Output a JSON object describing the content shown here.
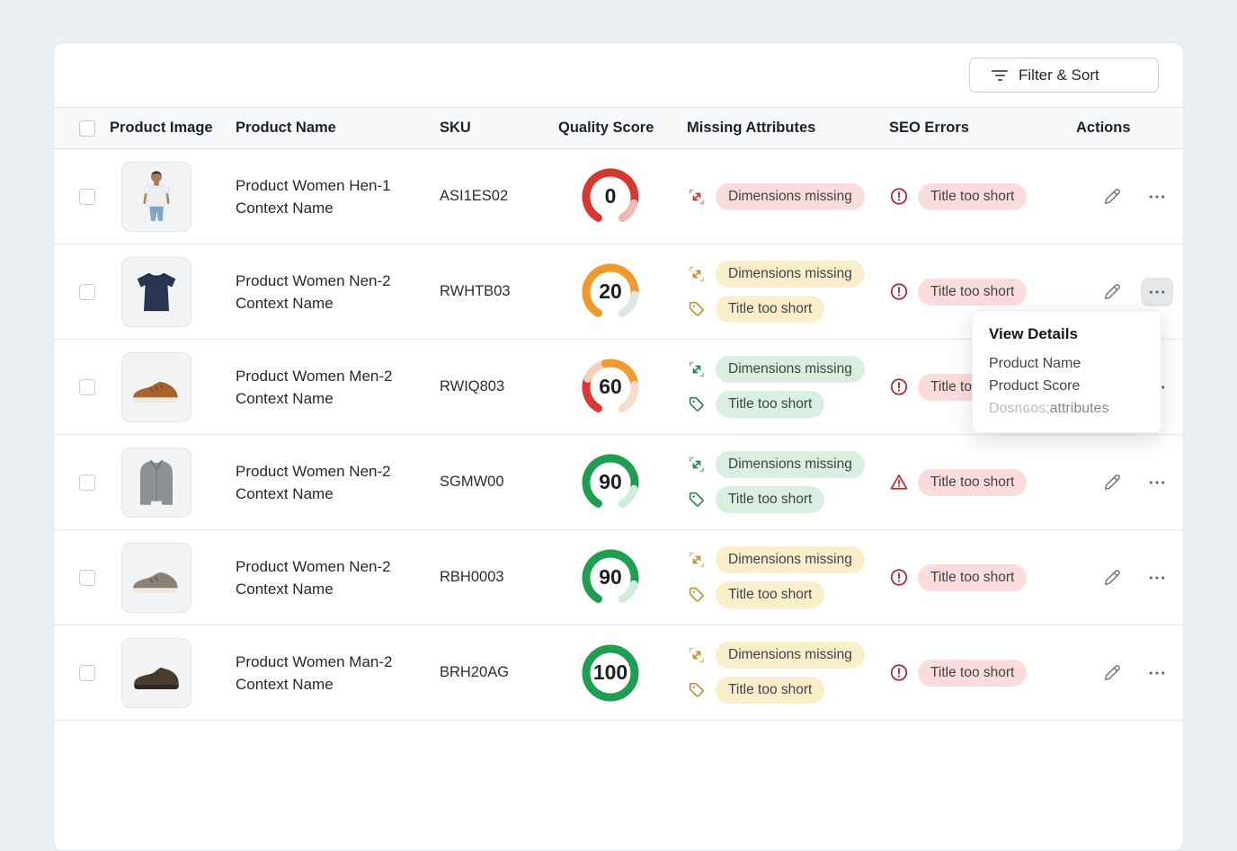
{
  "toolbar": {
    "filter_sort": "Filter & Sort"
  },
  "columns": {
    "product_image": "Product Image",
    "product_name": "Product Name",
    "sku": "SKU",
    "quality_score": "Quality Score",
    "missing_attributes": "Missing Attributes",
    "seo_errors": "SEO Errors",
    "actions": "Actions"
  },
  "rows": [
    {
      "image": "model-tshirt",
      "name_line1": "Product Women Hen-1",
      "name_line2": "Context Name",
      "sku": "ASI1ES02",
      "score": "0",
      "gauge": {
        "gap": 60,
        "segments": [
          {
            "color": "#d5382f",
            "pct": 85
          },
          {
            "color": "#f2b6b3",
            "pct": 15
          }
        ]
      },
      "missing_attributes": [
        {
          "icon": "expand",
          "color": "#c23b31",
          "bg": "#fbdcdc",
          "label": "Dimensions missing"
        }
      ],
      "seo_errors": [
        {
          "icon": "alert-circle",
          "color": "#9d2d37",
          "bg": "#fbdcdc",
          "label": "Title too short"
        }
      ],
      "menu_open": false
    },
    {
      "image": "tshirt-navy",
      "name_line1": "Product Women Nen-2",
      "name_line2": "Context Name",
      "sku": "RWHTB03",
      "score": "20",
      "gauge": {
        "gap": 60,
        "segments": [
          {
            "color": "#f0992e",
            "pct": 82
          },
          {
            "color": "#dde8e1",
            "pct": 18
          }
        ]
      },
      "missing_attributes": [
        {
          "icon": "expand",
          "color": "#bf9231",
          "bg": "#fbeecb",
          "label": "Dimensions missing"
        },
        {
          "icon": "tag",
          "color": "#bf9231",
          "bg": "#fbeecb",
          "label": "Title too short"
        }
      ],
      "seo_errors": [
        {
          "icon": "alert-circle",
          "color": "#9d2d37",
          "bg": "#fbdcdc",
          "label": "Title too short"
        }
      ],
      "menu_open": true
    },
    {
      "image": "sneaker-brown",
      "name_line1": "Product Women Men-2",
      "name_line2": "Context Name",
      "sku": "RWIQ803",
      "score": "60",
      "gauge": {
        "gap": 60,
        "segments": [
          {
            "color": "#d63a32",
            "pct": 27
          },
          {
            "color": "#f5d0bd",
            "pct": 19
          },
          {
            "color": "#f0992e",
            "pct": 32
          },
          {
            "color": "#f7dcc9",
            "pct": 22
          }
        ]
      },
      "missing_attributes": [
        {
          "icon": "expand",
          "color": "#2f8050",
          "bg": "#d9efdf",
          "label": "Dimensions missing"
        },
        {
          "icon": "tag",
          "color": "#2f8050",
          "bg": "#d9efdf",
          "label": "Title too short"
        }
      ],
      "seo_errors": [
        {
          "icon": "alert-circle",
          "color": "#9d2d37",
          "bg": "#fbdcdc",
          "label": "Title too short"
        }
      ],
      "menu_open": false
    },
    {
      "image": "coat-gray",
      "name_line1": "Product Women Nen-2",
      "name_line2": "Context Name",
      "sku": "SGMW00",
      "score": "90",
      "gauge": {
        "gap": 60,
        "segments": [
          {
            "color": "#1f9e52",
            "pct": 85
          },
          {
            "color": "#cdeedb",
            "pct": 15
          }
        ]
      },
      "missing_attributes": [
        {
          "icon": "expand",
          "color": "#2f8050",
          "bg": "#d9efdf",
          "label": "Dimensions missing"
        },
        {
          "icon": "tag",
          "color": "#2f8050",
          "bg": "#d9efdf",
          "label": "Title too short"
        }
      ],
      "seo_errors": [
        {
          "icon": "alert-triangle",
          "color": "#ad3430",
          "bg": "#fbdcdc",
          "label": "Title too short"
        }
      ],
      "menu_open": false
    },
    {
      "image": "shoe-gray",
      "name_line1": "Product Women Nen-2",
      "name_line2": "Context Name",
      "sku": "RBH0003",
      "score": "90",
      "gauge": {
        "gap": 60,
        "segments": [
          {
            "color": "#1f9e52",
            "pct": 85
          },
          {
            "color": "#cdeedb",
            "pct": 15
          }
        ]
      },
      "missing_attributes": [
        {
          "icon": "expand",
          "color": "#bf9231",
          "bg": "#fbeecb",
          "label": "Dimensions missing"
        },
        {
          "icon": "tag",
          "color": "#bf9231",
          "bg": "#fbeecb",
          "label": "Title too short"
        }
      ],
      "seo_errors": [
        {
          "icon": "alert-circle",
          "color": "#9d2d37",
          "bg": "#fbdcdc",
          "label": "Title too short"
        }
      ],
      "menu_open": false
    },
    {
      "image": "boot-brown",
      "name_line1": "Product Women Man-2",
      "name_line2": "Context Name",
      "sku": "BRH20AG",
      "score": "100",
      "gauge": {
        "gap": 0,
        "segments": [
          {
            "color": "#1f9e52",
            "pct": 100
          }
        ]
      },
      "missing_attributes": [
        {
          "icon": "expand",
          "color": "#bf9231",
          "bg": "#fbeecb",
          "label": "Dimensions missing"
        },
        {
          "icon": "tag",
          "color": "#bf9231",
          "bg": "#fbeecb",
          "label": "Title too short"
        }
      ],
      "seo_errors": [
        {
          "icon": "alert-circle",
          "color": "#9d2d37",
          "bg": "#fbdcdc",
          "label": "Title too short"
        }
      ],
      "menu_open": false
    }
  ],
  "popup": {
    "title": "View Details",
    "item1": "Product Name",
    "item2": "Product Score",
    "item3_muted": "Dosnɢos;",
    "item3_rest": "attributes"
  }
}
